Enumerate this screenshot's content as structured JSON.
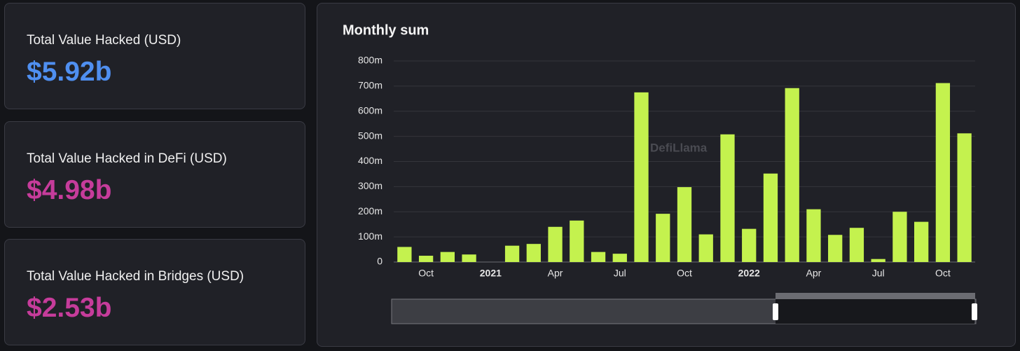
{
  "cards": [
    {
      "label": "Total Value Hacked (USD)",
      "value": "$5.92b",
      "color": "#4f8ff0"
    },
    {
      "label": "Total Value Hacked in DeFi (USD)",
      "value": "$4.98b",
      "color": "#c63c9b"
    },
    {
      "label": "Total Value Hacked in Bridges (USD)",
      "value": "$2.53b",
      "color": "#c63c9b"
    }
  ],
  "chart_data": {
    "type": "bar",
    "title": "Monthly sum",
    "watermark": "DefiLlama",
    "color": "#c4f24e",
    "grid": true,
    "categories": [
      null,
      "Oct",
      null,
      null,
      "2021",
      null,
      null,
      "Apr",
      null,
      null,
      "Jul",
      null,
      null,
      "Oct",
      null,
      null,
      "2022",
      null,
      null,
      "Apr",
      null,
      null,
      "Jul",
      null,
      null,
      "Oct",
      null
    ],
    "values": [
      60000000,
      25000000,
      40000000,
      30000000,
      0,
      65000000,
      72000000,
      140000000,
      165000000,
      40000000,
      33000000,
      675000000,
      192000000,
      298000000,
      110000000,
      508000000,
      132000000,
      352000000,
      692000000,
      210000000,
      108000000,
      136000000,
      12000000,
      200000000,
      160000000,
      712000000,
      512000000
    ],
    "ylim": [
      0,
      800000000
    ],
    "yticks": [
      0,
      {
        "value": 100000000,
        "label": "100m"
      },
      {
        "value": 200000000,
        "label": "200m"
      },
      {
        "value": 300000000,
        "label": "300m"
      },
      {
        "value": 400000000,
        "label": "400m"
      },
      {
        "value": 500000000,
        "label": "500m"
      },
      {
        "value": 600000000,
        "label": "600m"
      },
      {
        "value": 700000000,
        "label": "700m"
      },
      {
        "value": 800000000,
        "label": "800m"
      }
    ]
  }
}
